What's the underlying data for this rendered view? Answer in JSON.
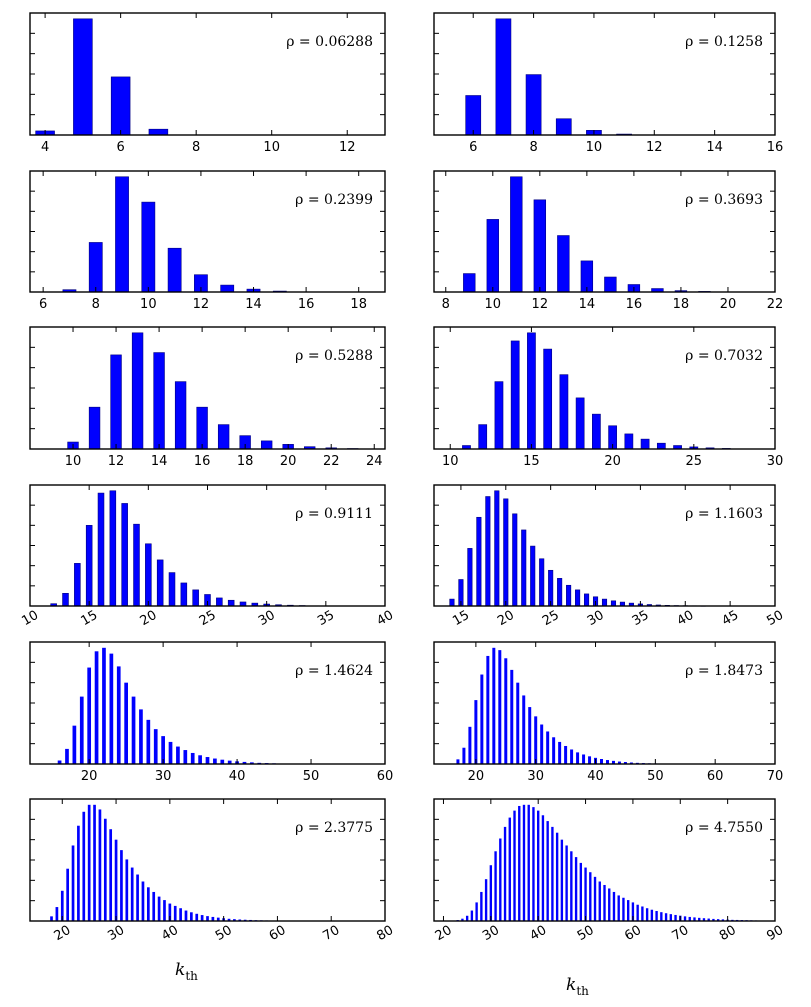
{
  "colors": {
    "bar": "#0000ff",
    "bar_stroke": "#000080",
    "axes": "#000000"
  },
  "xlabel": {
    "main": "k",
    "sub": "th"
  },
  "chart_data": [
    {
      "type": "bar",
      "label": "ρ = 0.06288",
      "xlim": [
        3.6,
        13
      ],
      "ylim": [
        0,
        1.05
      ],
      "xticks": [
        4,
        6,
        8,
        10,
        12
      ],
      "tick_rotation": 0,
      "x": [
        4,
        5,
        6,
        7
      ],
      "values": [
        0.035,
        1.0,
        0.5,
        0.05
      ]
    },
    {
      "type": "bar",
      "label": "ρ = 0.1258",
      "xlim": [
        4.7,
        16
      ],
      "ylim": [
        0,
        1.05
      ],
      "xticks": [
        6,
        8,
        10,
        12,
        14,
        16
      ],
      "tick_rotation": 0,
      "x": [
        6,
        7,
        8,
        9,
        10,
        11
      ],
      "values": [
        0.34,
        1.0,
        0.52,
        0.14,
        0.04,
        0.008
      ]
    },
    {
      "type": "bar",
      "label": "ρ = 0.2399",
      "xlim": [
        5.5,
        19
      ],
      "ylim": [
        0,
        1.05
      ],
      "xticks": [
        6,
        8,
        10,
        12,
        14,
        16,
        18
      ],
      "tick_rotation": 0,
      "x": [
        7,
        8,
        9,
        10,
        11,
        12,
        13,
        14,
        15
      ],
      "values": [
        0.02,
        0.43,
        1.0,
        0.78,
        0.38,
        0.15,
        0.06,
        0.025,
        0.008
      ]
    },
    {
      "type": "bar",
      "label": "ρ = 0.3693",
      "xlim": [
        7.5,
        22
      ],
      "ylim": [
        0,
        1.05
      ],
      "xticks": [
        8,
        10,
        12,
        14,
        16,
        18,
        20,
        22
      ],
      "tick_rotation": 0,
      "x": [
        9,
        10,
        11,
        12,
        13,
        14,
        15,
        16,
        17,
        18,
        19
      ],
      "values": [
        0.16,
        0.63,
        1.0,
        0.8,
        0.49,
        0.27,
        0.13,
        0.065,
        0.03,
        0.012,
        0.005
      ]
    },
    {
      "type": "bar",
      "label": "ρ = 0.5288",
      "xlim": [
        8,
        24.5
      ],
      "ylim": [
        0,
        1.05
      ],
      "xticks": [
        10,
        12,
        14,
        16,
        18,
        20,
        22,
        24
      ],
      "tick_rotation": 0,
      "x": [
        10,
        11,
        12,
        13,
        14,
        15,
        16,
        17,
        18,
        19,
        20,
        21,
        22,
        23
      ],
      "values": [
        0.06,
        0.36,
        0.81,
        1.0,
        0.83,
        0.58,
        0.36,
        0.21,
        0.115,
        0.07,
        0.04,
        0.02,
        0.01,
        0.004
      ]
    },
    {
      "type": "bar",
      "label": "ρ = 0.7032",
      "xlim": [
        9,
        30
      ],
      "ylim": [
        0,
        1.05
      ],
      "xticks": [
        10,
        15,
        20,
        25,
        30
      ],
      "tick_rotation": 0,
      "x": [
        11,
        12,
        13,
        14,
        15,
        16,
        17,
        18,
        19,
        20,
        21,
        22,
        23,
        24,
        25,
        26,
        27
      ],
      "values": [
        0.03,
        0.21,
        0.58,
        0.93,
        1.0,
        0.86,
        0.64,
        0.44,
        0.3,
        0.2,
        0.13,
        0.085,
        0.05,
        0.03,
        0.018,
        0.01,
        0.005
      ]
    },
    {
      "type": "bar",
      "label": "ρ = 0.9111",
      "xlim": [
        10,
        40
      ],
      "ylim": [
        0,
        1.05
      ],
      "xticks": [
        10,
        15,
        20,
        25,
        30,
        35,
        40
      ],
      "tick_rotation": -30,
      "x": [
        12,
        13,
        14,
        15,
        16,
        17,
        18,
        19,
        20,
        21,
        22,
        23,
        24,
        25,
        26,
        27,
        28,
        29,
        30,
        31,
        32,
        33
      ],
      "values": [
        0.02,
        0.11,
        0.37,
        0.7,
        0.98,
        1.0,
        0.89,
        0.71,
        0.54,
        0.4,
        0.29,
        0.2,
        0.14,
        0.1,
        0.07,
        0.05,
        0.035,
        0.025,
        0.017,
        0.011,
        0.007,
        0.004
      ]
    },
    {
      "type": "bar",
      "label": "ρ = 1.1603",
      "xlim": [
        12,
        50
      ],
      "ylim": [
        0,
        1.05
      ],
      "xticks": [
        15,
        20,
        25,
        30,
        35,
        40,
        45,
        50
      ],
      "tick_rotation": -30,
      "x": [
        14,
        15,
        16,
        17,
        18,
        19,
        20,
        21,
        22,
        23,
        24,
        25,
        26,
        27,
        28,
        29,
        30,
        31,
        32,
        33,
        34,
        35,
        36,
        37,
        38,
        39,
        40,
        41,
        42
      ],
      "values": [
        0.06,
        0.23,
        0.5,
        0.77,
        0.95,
        1.0,
        0.93,
        0.8,
        0.66,
        0.52,
        0.41,
        0.31,
        0.24,
        0.18,
        0.14,
        0.105,
        0.08,
        0.06,
        0.045,
        0.034,
        0.025,
        0.018,
        0.013,
        0.009,
        0.006,
        0.004,
        0.003,
        0.002,
        0.001
      ]
    },
    {
      "type": "bar",
      "label": "ρ = 1.4624",
      "xlim": [
        12,
        60
      ],
      "ylim": [
        0,
        1.05
      ],
      "xticks": [
        20,
        30,
        40,
        50,
        60
      ],
      "tick_rotation": 0,
      "x": [
        16,
        17,
        18,
        19,
        20,
        21,
        22,
        23,
        24,
        25,
        26,
        27,
        28,
        29,
        30,
        31,
        32,
        33,
        34,
        35,
        36,
        37,
        38,
        39,
        40,
        41,
        42,
        43,
        44,
        45,
        46,
        47,
        48
      ],
      "values": [
        0.03,
        0.13,
        0.33,
        0.58,
        0.83,
        0.97,
        1.0,
        0.95,
        0.84,
        0.7,
        0.58,
        0.47,
        0.38,
        0.3,
        0.24,
        0.19,
        0.15,
        0.12,
        0.095,
        0.075,
        0.06,
        0.047,
        0.037,
        0.029,
        0.023,
        0.018,
        0.014,
        0.01,
        0.008,
        0.006,
        0.004,
        0.003,
        0.002
      ]
    },
    {
      "type": "bar",
      "label": "ρ = 1.8473",
      "xlim": [
        13,
        70
      ],
      "ylim": [
        0,
        1.05
      ],
      "xticks": [
        20,
        30,
        40,
        50,
        60,
        70
      ],
      "tick_rotation": 0,
      "x": [
        17,
        18,
        19,
        20,
        21,
        22,
        23,
        24,
        25,
        26,
        27,
        28,
        29,
        30,
        31,
        32,
        33,
        34,
        35,
        36,
        37,
        38,
        39,
        40,
        41,
        42,
        43,
        44,
        45,
        46,
        47,
        48,
        49,
        50,
        51,
        52,
        53,
        54,
        55
      ],
      "values": [
        0.04,
        0.14,
        0.32,
        0.55,
        0.77,
        0.93,
        1.0,
        0.98,
        0.91,
        0.81,
        0.7,
        0.59,
        0.49,
        0.41,
        0.34,
        0.28,
        0.23,
        0.19,
        0.155,
        0.125,
        0.1,
        0.082,
        0.066,
        0.053,
        0.043,
        0.034,
        0.027,
        0.021,
        0.017,
        0.013,
        0.01,
        0.008,
        0.006,
        0.005,
        0.004,
        0.003,
        0.002,
        0.0015,
        0.001
      ]
    },
    {
      "type": "bar",
      "label": "ρ = 2.3775",
      "xlim": [
        14,
        80
      ],
      "ylim": [
        0,
        1.05
      ],
      "xticks": [
        20,
        30,
        40,
        50,
        60,
        70,
        80
      ],
      "tick_rotation": -30,
      "x": [
        18,
        19,
        20,
        21,
        22,
        23,
        24,
        25,
        26,
        27,
        28,
        29,
        30,
        31,
        32,
        33,
        34,
        35,
        36,
        37,
        38,
        39,
        40,
        41,
        42,
        43,
        44,
        45,
        46,
        47,
        48,
        49,
        50,
        51,
        52,
        53,
        54,
        55,
        56,
        57,
        58,
        59,
        60,
        61,
        62
      ],
      "values": [
        0.04,
        0.12,
        0.26,
        0.45,
        0.65,
        0.82,
        0.94,
        1.0,
        1.0,
        0.96,
        0.88,
        0.79,
        0.7,
        0.61,
        0.53,
        0.46,
        0.4,
        0.34,
        0.29,
        0.25,
        0.21,
        0.18,
        0.15,
        0.13,
        0.11,
        0.09,
        0.075,
        0.062,
        0.051,
        0.042,
        0.035,
        0.029,
        0.024,
        0.019,
        0.016,
        0.013,
        0.011,
        0.009,
        0.007,
        0.006,
        0.005,
        0.004,
        0.003,
        0.002,
        0.0015
      ]
    },
    {
      "type": "bar",
      "label": "ρ = 4.7550",
      "xlim": [
        18,
        90
      ],
      "ylim": [
        0,
        1.05
      ],
      "xticks": [
        20,
        30,
        40,
        50,
        60,
        70,
        80,
        90
      ],
      "tick_rotation": -30,
      "x": [
        23,
        24,
        25,
        26,
        27,
        28,
        29,
        30,
        31,
        32,
        33,
        34,
        35,
        36,
        37,
        38,
        39,
        40,
        41,
        42,
        43,
        44,
        45,
        46,
        47,
        48,
        49,
        50,
        51,
        52,
        53,
        54,
        55,
        56,
        57,
        58,
        59,
        60,
        61,
        62,
        63,
        64,
        65,
        66,
        67,
        68,
        69,
        70,
        71,
        72,
        73,
        74,
        75,
        76,
        77,
        78,
        79,
        80,
        81,
        82,
        83,
        84,
        85,
        86,
        87,
        88,
        89
      ],
      "values": [
        0.008,
        0.02,
        0.045,
        0.09,
        0.16,
        0.25,
        0.36,
        0.48,
        0.6,
        0.71,
        0.81,
        0.89,
        0.95,
        0.99,
        1.0,
        1.0,
        0.98,
        0.95,
        0.91,
        0.86,
        0.81,
        0.76,
        0.7,
        0.65,
        0.6,
        0.55,
        0.5,
        0.46,
        0.42,
        0.38,
        0.34,
        0.31,
        0.28,
        0.25,
        0.22,
        0.2,
        0.18,
        0.16,
        0.14,
        0.125,
        0.11,
        0.097,
        0.086,
        0.076,
        0.067,
        0.059,
        0.052,
        0.046,
        0.04,
        0.035,
        0.031,
        0.027,
        0.024,
        0.021,
        0.018,
        0.016,
        0.014,
        0.012,
        0.01,
        0.009,
        0.008,
        0.007,
        0.006,
        0.005,
        0.004,
        0.0035,
        0.003
      ]
    }
  ]
}
